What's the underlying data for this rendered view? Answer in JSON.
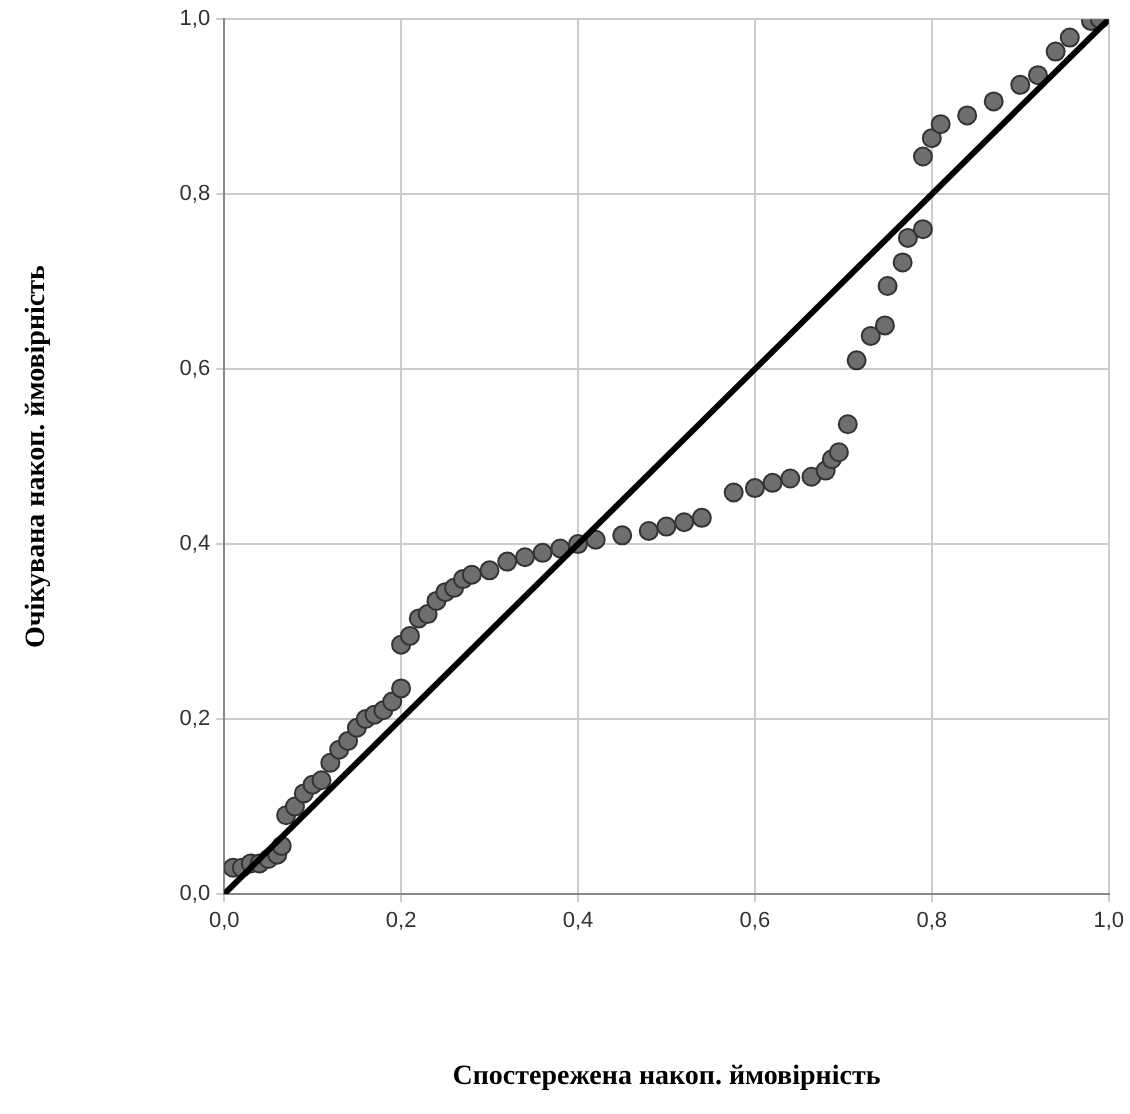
{
  "chart_data": {
    "type": "scatter",
    "xlabel": "Спостережена накоп. ймовірність",
    "ylabel": "Очікувана накоп. ймовірність",
    "series": [
      {
        "color": "#6e6e6e",
        "marker": "circle",
        "x": [
          0.01,
          0.02,
          0.03,
          0.04,
          0.05,
          0.06,
          0.065,
          0.07,
          0.08,
          0.09,
          0.1,
          0.11,
          0.12,
          0.13,
          0.14,
          0.15,
          0.16,
          0.17,
          0.18,
          0.19,
          0.2,
          0.2,
          0.21,
          0.22,
          0.23,
          0.24,
          0.25,
          0.26,
          0.27,
          0.28,
          0.3,
          0.32,
          0.34,
          0.36,
          0.38,
          0.4,
          0.42,
          0.45,
          0.48,
          0.5,
          0.52,
          0.54,
          0.576,
          0.6,
          0.62,
          0.64,
          0.664,
          0.68,
          0.687,
          0.695,
          0.705,
          0.715,
          0.731,
          0.747,
          0.75,
          0.767,
          0.773,
          0.79,
          0.79,
          0.8,
          0.81,
          0.84,
          0.87,
          0.9,
          0.92,
          0.94,
          0.956,
          0.98,
          0.99
        ],
        "values": [
          0.03,
          0.03,
          0.035,
          0.035,
          0.04,
          0.045,
          0.055,
          0.09,
          0.1,
          0.115,
          0.125,
          0.13,
          0.15,
          0.165,
          0.175,
          0.19,
          0.2,
          0.205,
          0.21,
          0.22,
          0.235,
          0.285,
          0.295,
          0.315,
          0.32,
          0.335,
          0.345,
          0.35,
          0.36,
          0.365,
          0.37,
          0.38,
          0.385,
          0.39,
          0.395,
          0.4,
          0.405,
          0.41,
          0.415,
          0.42,
          0.425,
          0.43,
          0.459,
          0.464,
          0.47,
          0.475,
          0.477,
          0.484,
          0.497,
          0.505,
          0.537,
          0.61,
          0.638,
          0.65,
          0.695,
          0.722,
          0.75,
          0.76,
          0.843,
          0.864,
          0.88,
          0.89,
          0.906,
          0.925,
          0.936,
          0.963,
          0.979,
          0.998,
          1.0
        ]
      },
      {
        "type": "line",
        "color": "#000000",
        "marker": "none",
        "line_style": "solid",
        "x": [
          0,
          1
        ],
        "values": [
          0,
          1
        ]
      }
    ],
    "xlim": [
      0,
      1
    ],
    "ylim": [
      0,
      1
    ],
    "xticks": [
      {
        "value": 0,
        "label": "0,0"
      },
      {
        "value": 0.2,
        "label": "0,2"
      },
      {
        "value": 0.4,
        "label": "0,4"
      },
      {
        "value": 0.6,
        "label": "0,6"
      },
      {
        "value": 0.8,
        "label": "0,8"
      },
      {
        "value": 1,
        "label": "1,0"
      }
    ],
    "yticks": [
      {
        "value": 0,
        "label": "0,0"
      },
      {
        "value": 0.2,
        "label": "0,2"
      },
      {
        "value": 0.4,
        "label": "0,4"
      },
      {
        "value": 0.6,
        "label": "0,6"
      },
      {
        "value": 0.8,
        "label": "0,8"
      },
      {
        "value": 1,
        "label": "1,0"
      }
    ],
    "grid": true,
    "legend": false
  }
}
